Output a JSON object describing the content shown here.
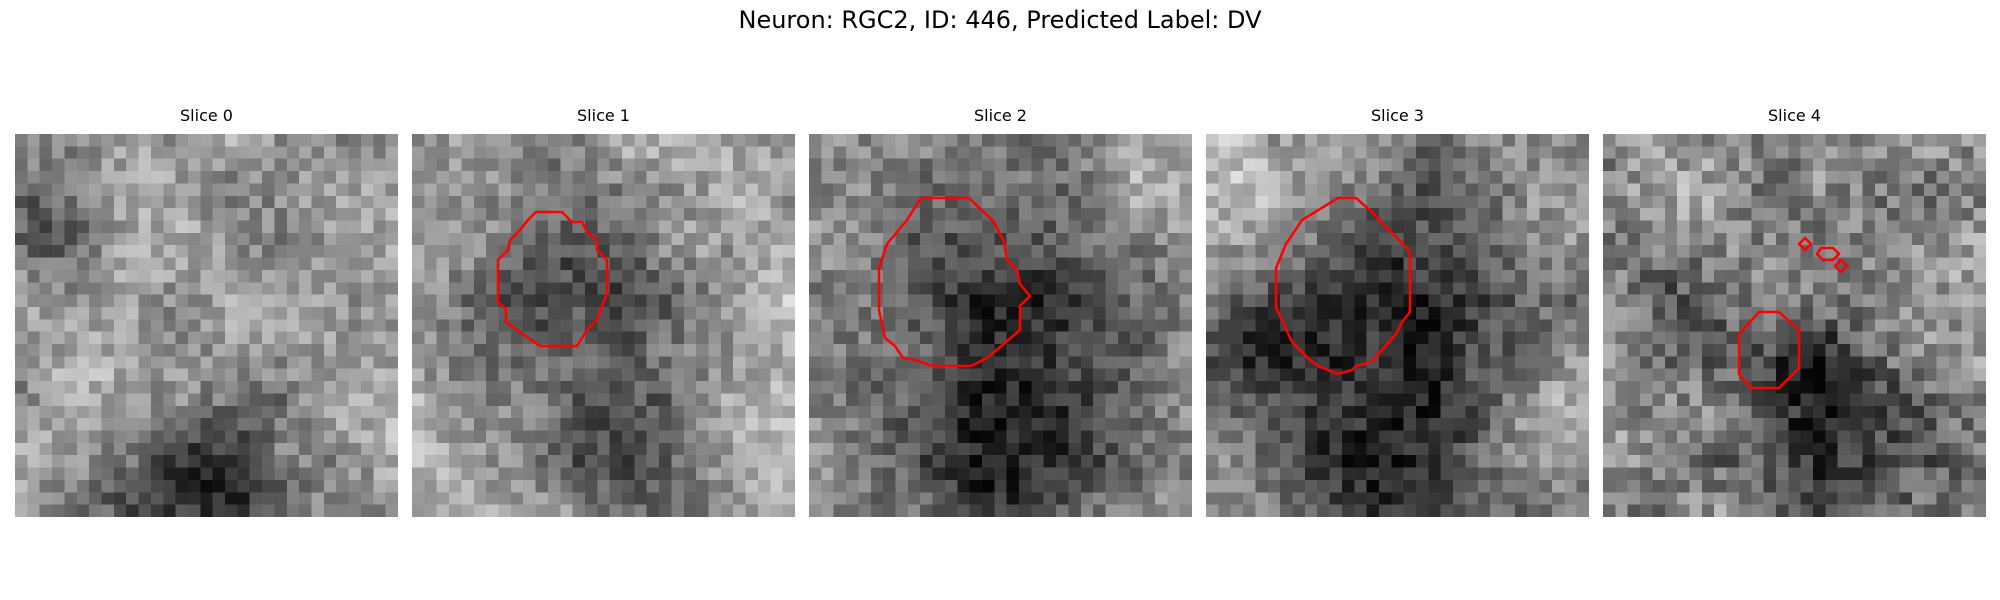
{
  "figure": {
    "title": "Neuron: RGC2, ID: 446, Predicted Label: DV"
  },
  "slices": [
    {
      "title": "Slice 0",
      "has_contour": false
    },
    {
      "title": "Slice 1",
      "has_contour": true
    },
    {
      "title": "Slice 2",
      "has_contour": true
    },
    {
      "title": "Slice 3",
      "has_contour": true
    },
    {
      "title": "Slice 4",
      "has_contour": true
    }
  ],
  "colors": {
    "contour": "#ff0000",
    "background": "#ffffff"
  },
  "image": {
    "colormap": "gray",
    "grid_size": [
      31,
      31
    ]
  }
}
